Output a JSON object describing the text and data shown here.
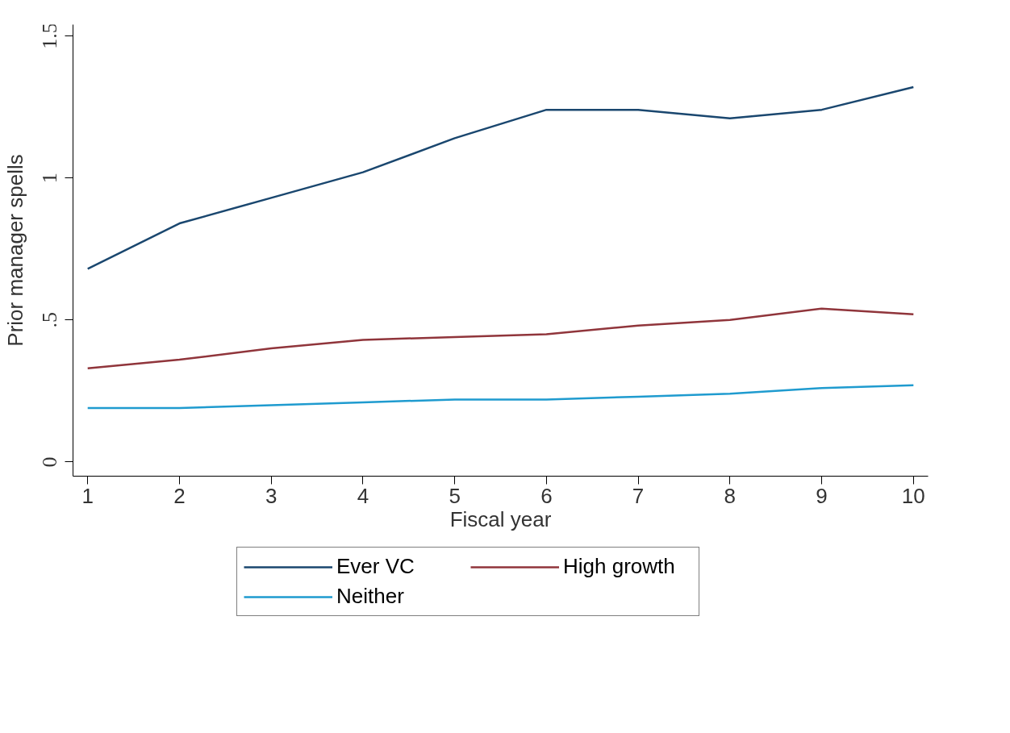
{
  "chart_data": {
    "type": "line",
    "xlabel": "Fiscal year",
    "ylabel": "Prior manager spells",
    "x": [
      1,
      2,
      3,
      4,
      5,
      6,
      7,
      8,
      9,
      10
    ],
    "series": [
      {
        "name": "Ever VC",
        "color": "#1a476f",
        "values": [
          0.68,
          0.84,
          0.93,
          1.02,
          1.14,
          1.24,
          1.24,
          1.21,
          1.24,
          1.32
        ]
      },
      {
        "name": "High growth",
        "color": "#90353b",
        "values": [
          0.33,
          0.36,
          0.4,
          0.43,
          0.44,
          0.45,
          0.48,
          0.5,
          0.54,
          0.52
        ]
      },
      {
        "name": "Neither",
        "color": "#1f9bcf",
        "values": [
          0.19,
          0.19,
          0.2,
          0.21,
          0.22,
          0.22,
          0.23,
          0.24,
          0.26,
          0.27
        ]
      }
    ],
    "xlim": [
      0.84,
      10.16
    ],
    "ylim": [
      -0.05,
      1.54
    ],
    "xticks": [
      1,
      2,
      3,
      4,
      5,
      6,
      7,
      8,
      9,
      10
    ],
    "yticks": [
      0,
      {
        "value": 0.5,
        "label": ".5"
      },
      1,
      1.5
    ],
    "grid": false,
    "legend": "bottom",
    "marker": "none",
    "line_style": "solid"
  }
}
